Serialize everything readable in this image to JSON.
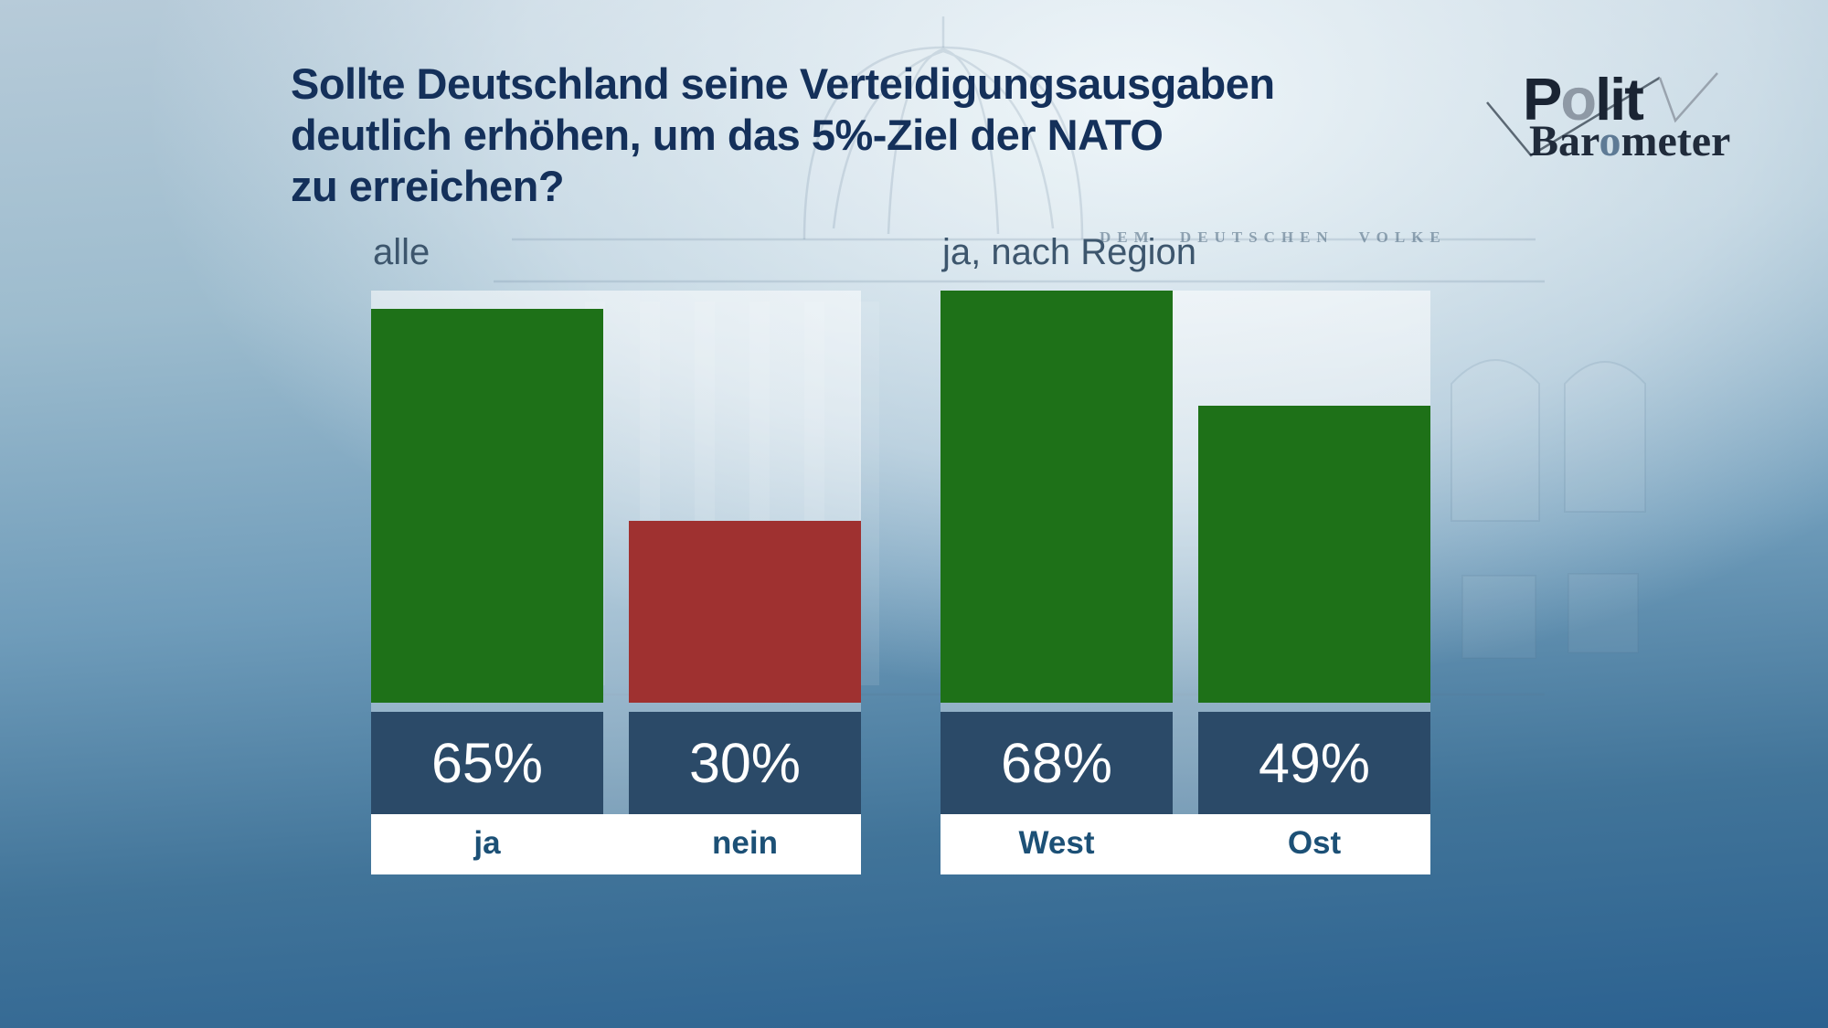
{
  "title": {
    "lines": [
      "Sollte Deutschland seine Verteidigungsausgaben",
      "deutlich erhöhen, um das 5%-Ziel der NATO",
      "zu erreichen?"
    ]
  },
  "logo": {
    "word1_parts": [
      "P",
      "o",
      "lit"
    ],
    "word2_parts": [
      "Bar",
      "o",
      "meter"
    ]
  },
  "background": {
    "inscription": "DEM DEUTSCHEN VOLKE"
  },
  "chart_data": {
    "type": "bar",
    "title": "Sollte Deutschland seine Verteidigungsausgaben deutlich erhöhen, um das 5%-Ziel der NATO zu erreichen?",
    "unit": "%",
    "scale_max": 68,
    "grid": false,
    "legend_position": "none",
    "groups": [
      {
        "heading": "alle",
        "categories": [
          "ja",
          "nein"
        ],
        "values": [
          65,
          30
        ],
        "value_labels": [
          "65%",
          "30%"
        ],
        "bar_colors": [
          "#1e7118",
          "#9f3130"
        ]
      },
      {
        "heading": "ja, nach Region",
        "categories": [
          "West",
          "Ost"
        ],
        "values": [
          68,
          49
        ],
        "value_labels": [
          "68%",
          "49%"
        ],
        "bar_colors": [
          "#1e7118",
          "#1e7118"
        ]
      }
    ]
  },
  "colors": {
    "bar_green": "#1e7118",
    "bar_red": "#9f3130",
    "value_box_navy": "#2b4a68",
    "value_text": "#ffffff",
    "category_text": "#1c5076",
    "heading_text": "#3d566d",
    "title_text": "#14305a",
    "background_top": "#c3d4de",
    "background_bottom": "#2b6190"
  }
}
